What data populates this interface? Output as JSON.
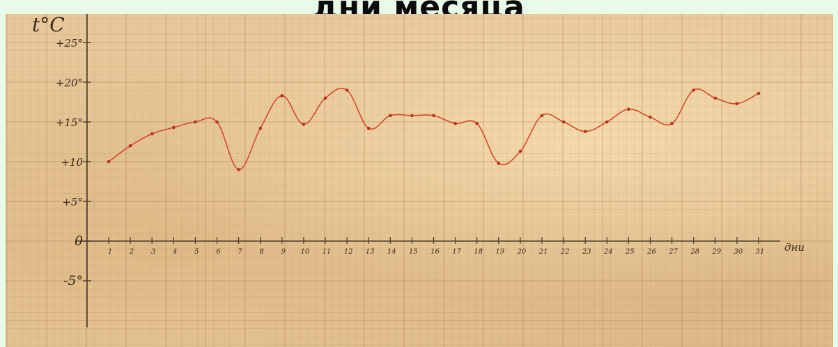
{
  "title": "дни месяца",
  "chart_data": {
    "type": "line",
    "title": "дни месяца",
    "ylabel": "t°C",
    "xlabel": "дни",
    "y_ticks": [
      "+25°",
      "+20°",
      "+15°",
      "+10",
      "+5°",
      "0",
      "-5°"
    ],
    "y_tick_values": [
      25,
      20,
      15,
      10,
      5,
      0,
      -5
    ],
    "ylim": [
      -10,
      27
    ],
    "x": [
      1,
      2,
      3,
      4,
      5,
      6,
      7,
      8,
      9,
      10,
      11,
      12,
      13,
      14,
      15,
      16,
      17,
      18,
      19,
      20,
      21,
      22,
      23,
      24,
      25,
      26,
      27,
      28,
      29,
      30,
      31
    ],
    "values": [
      10,
      12,
      13.5,
      14.3,
      15,
      15,
      9,
      14.2,
      18.3,
      14.7,
      18,
      19,
      14.2,
      15.8,
      15.8,
      15.8,
      14.8,
      14.8,
      9.8,
      11.3,
      15.8,
      15,
      13.8,
      15,
      16.6,
      15.6,
      14.8,
      19,
      18,
      17.3,
      18.6
    ],
    "line_color": "#d8472e",
    "grid": true
  }
}
